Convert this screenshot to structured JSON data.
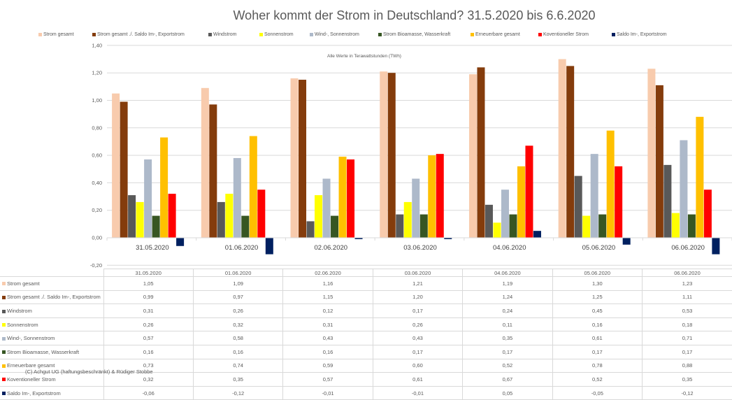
{
  "chart_data": {
    "type": "bar",
    "title": "Woher kommt der Strom in Deutschland? 31.5.2020 bis 6.6.2020",
    "subtitle": "Alle Werte in Terawattstunden (TWh)",
    "xlabel": "",
    "ylabel": "",
    "ylim": [
      -0.2,
      1.4
    ],
    "yticks": [
      -0.2,
      0.0,
      0.2,
      0.4,
      0.6,
      0.8,
      1.0,
      1.2,
      1.4
    ],
    "ytick_labels": [
      "-0,20",
      "0,00",
      "0,20",
      "0,40",
      "0,60",
      "0,80",
      "1,00",
      "1,20",
      "1,40"
    ],
    "grid": true,
    "legend_position": "top",
    "categories": [
      "31.05.2020",
      "01.06.2020",
      "02.06.2020",
      "03.06.2020",
      "04.06.2020",
      "05.06.2020",
      "06.06.2020"
    ],
    "series": [
      {
        "name": "Strom gesamt",
        "color": "#F8CBAD",
        "values": [
          1.05,
          1.09,
          1.16,
          1.21,
          1.19,
          1.3,
          1.23
        ],
        "labels": [
          "1,05",
          "1,09",
          "1,16",
          "1,21",
          "1,19",
          "1,30",
          "1,23"
        ]
      },
      {
        "name": "Strom gesamt ./. Saldo Im-, Exportstrom",
        "color": "#843C0C",
        "values": [
          0.99,
          0.97,
          1.15,
          1.2,
          1.24,
          1.25,
          1.11
        ],
        "labels": [
          "0,99",
          "0,97",
          "1,15",
          "1,20",
          "1,24",
          "1,25",
          "1,11"
        ]
      },
      {
        "name": "Windstrom",
        "color": "#595959",
        "values": [
          0.31,
          0.26,
          0.12,
          0.17,
          0.24,
          0.45,
          0.53
        ],
        "labels": [
          "0,31",
          "0,26",
          "0,12",
          "0,17",
          "0,24",
          "0,45",
          "0,53"
        ]
      },
      {
        "name": "Sonnenstrom",
        "color": "#FFFF00",
        "values": [
          0.26,
          0.32,
          0.31,
          0.26,
          0.11,
          0.16,
          0.18
        ],
        "labels": [
          "0,26",
          "0,32",
          "0,31",
          "0,26",
          "0,11",
          "0,16",
          "0,18"
        ]
      },
      {
        "name": "Wind-, Sonnenstrom",
        "color": "#ADB9CA",
        "values": [
          0.57,
          0.58,
          0.43,
          0.43,
          0.35,
          0.61,
          0.71
        ],
        "labels": [
          "0,57",
          "0,58",
          "0,43",
          "0,43",
          "0,35",
          "0,61",
          "0,71"
        ]
      },
      {
        "name": "Strom Bioamasse, Wasserkraft",
        "color": "#375623",
        "values": [
          0.16,
          0.16,
          0.16,
          0.17,
          0.17,
          0.17,
          0.17
        ],
        "labels": [
          "0,16",
          "0,16",
          "0,16",
          "0,17",
          "0,17",
          "0,17",
          "0,17"
        ]
      },
      {
        "name": "Erneuerbare gesamt",
        "color": "#FFC000",
        "values": [
          0.73,
          0.74,
          0.59,
          0.6,
          0.52,
          0.78,
          0.88
        ],
        "labels": [
          "0,73",
          "0,74",
          "0,59",
          "0,60",
          "0,52",
          "0,78",
          "0,88"
        ]
      },
      {
        "name": "Koventioneller Strom",
        "color": "#FF0000",
        "values": [
          0.32,
          0.35,
          0.57,
          0.61,
          0.67,
          0.52,
          0.35
        ],
        "labels": [
          "0,32",
          "0,35",
          "0,57",
          "0,61",
          "0,67",
          "0,52",
          "0,35"
        ]
      },
      {
        "name": "Saldo Im-, Exportstrom",
        "color": "#002060",
        "values": [
          -0.06,
          -0.12,
          -0.01,
          -0.01,
          0.05,
          -0.05,
          -0.12
        ],
        "labels": [
          "-0,06",
          "-0,12",
          "-0,01",
          "-0,01",
          "0,05",
          "-0,05",
          "-0,12"
        ]
      }
    ]
  },
  "footer": {
    "copyright": "(C) Achgut UG (haftungsbeschränkt) & Rüdiger Stobbe"
  }
}
